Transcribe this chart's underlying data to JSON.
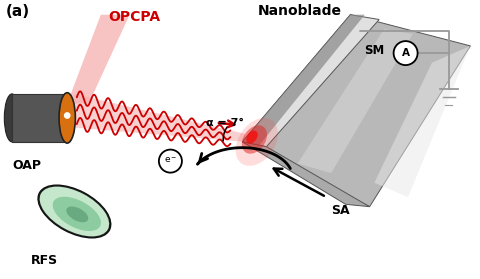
{
  "title_label": "(a)",
  "labels": {
    "opcpa": "OPCPA",
    "nanoblade": "Nanoblade",
    "oap": "OAP",
    "rfs": "RFS",
    "sm": "SM",
    "sa": "SA",
    "alpha": "α = 7°",
    "electron": "e⁻"
  },
  "colors": {
    "background": "#ffffff",
    "blade_face": "#b0b0b0",
    "blade_top": "#d8d8d8",
    "blade_left": "#888888",
    "blade_edge": "#444444",
    "oap_gray": "#555555",
    "oap_gray_dark": "#333333",
    "oap_orange": "#d4840a",
    "laser_red": "#cc0000",
    "beam_pink": "#f5aaaa",
    "beam_pink2": "#facccc",
    "rfs_outer": "#b8ddc0",
    "rfs_inner": "#7ec898",
    "rfs_center": "#5aaa7a",
    "wire_gray": "#999999",
    "red_spot": "#cc2222",
    "black": "#111111",
    "white": "#ffffff"
  },
  "figsize": [
    4.8,
    2.79
  ],
  "dpi": 100
}
